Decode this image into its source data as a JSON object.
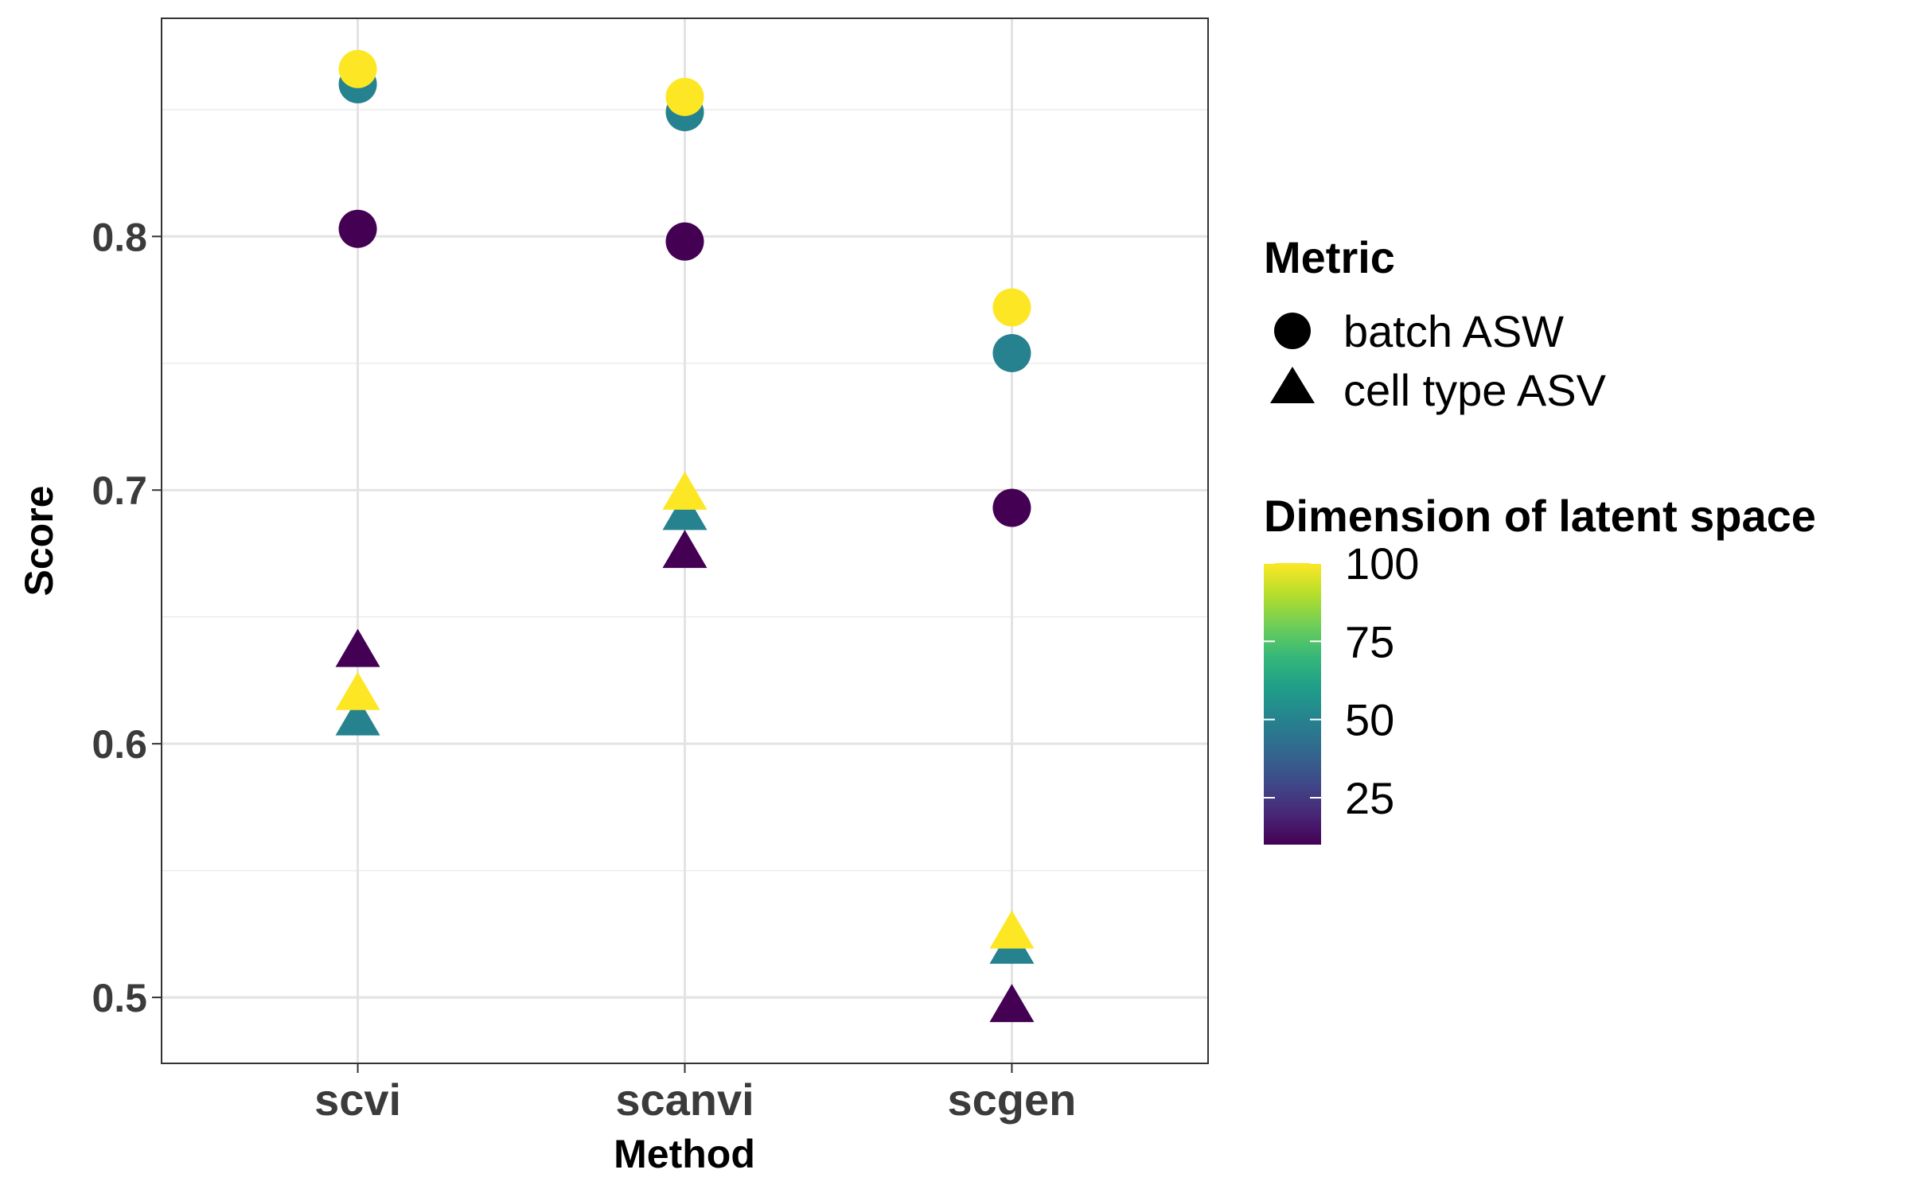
{
  "chart_data": {
    "type": "scatter",
    "title": "",
    "xlabel": "Method",
    "ylabel": "Score",
    "categories": [
      "scvi",
      "scanvi",
      "scgen"
    ],
    "ylim": [
      0.474,
      0.886
    ],
    "yticks": [
      0.5,
      0.6,
      0.7,
      0.8
    ],
    "ytick_labels": [
      "0.5",
      "0.6",
      "0.7",
      "0.8"
    ],
    "grid": true,
    "legend_placement": "right",
    "shape_legend": {
      "title": "Metric",
      "entries": [
        {
          "label": "batch ASW",
          "shape": "circle"
        },
        {
          "label": "cell type ASV",
          "shape": "triangle"
        }
      ]
    },
    "color_legend": {
      "title": "Dimension of latent space",
      "min": 10,
      "max": 100,
      "ticks": [
        25,
        50,
        75,
        100
      ],
      "tick_labels": [
        "25",
        "50",
        "75",
        "100"
      ],
      "colormap": "viridis",
      "colors": [
        "#440154",
        "#482878",
        "#3e4a89",
        "#31688e",
        "#26828e",
        "#1f9e89",
        "#35b779",
        "#6ece58",
        "#b5de2b",
        "#fde725"
      ]
    },
    "points": [
      {
        "method": "scvi",
        "metric": "batch ASW",
        "dimension": 10,
        "score": 0.803
      },
      {
        "method": "scvi",
        "metric": "batch ASW",
        "dimension": 50,
        "score": 0.86
      },
      {
        "method": "scvi",
        "metric": "batch ASW",
        "dimension": 100,
        "score": 0.866
      },
      {
        "method": "scvi",
        "metric": "cell type ASV",
        "dimension": 10,
        "score": 0.636
      },
      {
        "method": "scvi",
        "metric": "cell type ASV",
        "dimension": 50,
        "score": 0.609
      },
      {
        "method": "scvi",
        "metric": "cell type ASV",
        "dimension": 100,
        "score": 0.619
      },
      {
        "method": "scanvi",
        "metric": "batch ASW",
        "dimension": 10,
        "score": 0.798
      },
      {
        "method": "scanvi",
        "metric": "batch ASW",
        "dimension": 50,
        "score": 0.849
      },
      {
        "method": "scanvi",
        "metric": "batch ASW",
        "dimension": 100,
        "score": 0.855
      },
      {
        "method": "scanvi",
        "metric": "cell type ASV",
        "dimension": 10,
        "score": 0.675
      },
      {
        "method": "scanvi",
        "metric": "cell type ASV",
        "dimension": 50,
        "score": 0.69
      },
      {
        "method": "scanvi",
        "metric": "cell type ASV",
        "dimension": 100,
        "score": 0.698
      },
      {
        "method": "scgen",
        "metric": "batch ASW",
        "dimension": 10,
        "score": 0.693
      },
      {
        "method": "scgen",
        "metric": "batch ASW",
        "dimension": 50,
        "score": 0.754
      },
      {
        "method": "scgen",
        "metric": "batch ASW",
        "dimension": 100,
        "score": 0.772
      },
      {
        "method": "scgen",
        "metric": "cell type ASV",
        "dimension": 10,
        "score": 0.496
      },
      {
        "method": "scgen",
        "metric": "cell type ASV",
        "dimension": 50,
        "score": 0.519
      },
      {
        "method": "scgen",
        "metric": "cell type ASV",
        "dimension": 100,
        "score": 0.525
      }
    ]
  }
}
